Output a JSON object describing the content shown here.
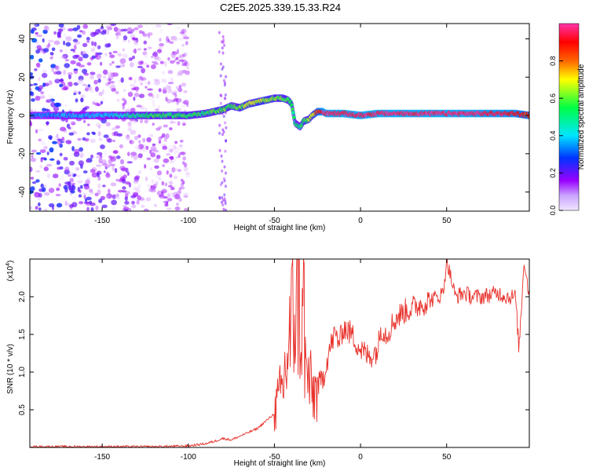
{
  "title": "C2E5.2025.339.15.33.R24",
  "chart_data": [
    {
      "type": "heatmap",
      "xlabel": "Height of straight line (km)",
      "ylabel": "Frequency (Hz)",
      "xlim": [
        -192,
        98
      ],
      "ylim": [
        -50,
        48
      ],
      "xticks": [
        -150,
        -100,
        -50,
        0,
        50
      ],
      "yticks": [
        -40,
        -20,
        0,
        20,
        40
      ],
      "colorbar": {
        "label": "Normalized spectral amplitude",
        "range": [
          0.0,
          1.0
        ],
        "ticks": [
          "0.0",
          "0.2",
          "0.4",
          "0.6",
          "0.8"
        ],
        "colors": [
          "#f2e6ff",
          "#9a00ff",
          "#0033ff",
          "#00e5ff",
          "#00ff44",
          "#ffff00",
          "#ff6600",
          "#ff0000",
          "#ff33aa"
        ]
      },
      "ridge": {
        "x": [
          -190,
          -170,
          -150,
          -140,
          -120,
          -100,
          -90,
          -80,
          -75,
          -70,
          -65,
          -60,
          -55,
          -50,
          -45,
          -42,
          -40,
          -38,
          -35,
          -33,
          -30,
          -28,
          -25,
          -22,
          -20,
          -10,
          0,
          10,
          30,
          60,
          90,
          98
        ],
        "freq": [
          0,
          0,
          0,
          0,
          0,
          0,
          1,
          3,
          5,
          4,
          6,
          7,
          8,
          9,
          9,
          8,
          6,
          -4,
          -6,
          -3,
          -2,
          0,
          2,
          2,
          1,
          1,
          0,
          1,
          1,
          1,
          1,
          0
        ],
        "amplitude": [
          0.3,
          0.35,
          0.35,
          0.4,
          0.5,
          0.5,
          0.5,
          0.55,
          0.5,
          0.55,
          0.6,
          0.6,
          0.6,
          0.55,
          0.55,
          0.5,
          0.5,
          0.45,
          0.45,
          0.5,
          0.55,
          0.6,
          0.8,
          0.9,
          0.95,
          0.95,
          0.95,
          0.95,
          0.95,
          0.95,
          0.9,
          0.8
        ]
      },
      "noise_region_x": [
        -192,
        -100
      ]
    },
    {
      "type": "line",
      "xlabel": "Height of straight line (km)",
      "ylabel": "SNR (10 * v/v)",
      "y_multiplier": "(x10",
      "y_exponent": "4",
      "y_multiplier_close": ")",
      "xlim": [
        -192,
        98
      ],
      "ylim": [
        0,
        2.5
      ],
      "xticks": [
        -150,
        -100,
        -50,
        0,
        50
      ],
      "yticks": [
        0.5,
        1.0,
        1.5,
        2.0
      ],
      "ytick_labels": [
        "0.5",
        "1.0",
        "1.5",
        "2.0"
      ],
      "series": [
        {
          "name": "SNR",
          "color": "#e8312b",
          "x": [
            -192,
            -150,
            -120,
            -100,
            -90,
            -85,
            -80,
            -75,
            -70,
            -65,
            -60,
            -55,
            -50,
            -45,
            -42,
            -40,
            -38,
            -36,
            -34,
            -33,
            -32,
            -30,
            -28,
            -25,
            -22,
            -20,
            -18,
            -15,
            -12,
            -10,
            -5,
            0,
            5,
            10,
            12,
            15,
            20,
            25,
            30,
            35,
            40,
            45,
            48,
            50,
            55,
            60,
            65,
            70,
            80,
            85,
            90,
            92,
            95,
            98
          ],
          "y": [
            0.01,
            0.01,
            0.01,
            0.02,
            0.05,
            0.08,
            0.12,
            0.1,
            0.15,
            0.2,
            0.25,
            0.35,
            0.45,
            0.8,
            1.3,
            1.6,
            1.9,
            2.2,
            1.4,
            2.0,
            1.0,
            0.9,
            0.7,
            0.8,
            0.9,
            1.1,
            1.3,
            1.5,
            1.4,
            1.6,
            1.5,
            1.3,
            1.2,
            1.3,
            1.6,
            1.5,
            1.7,
            1.8,
            1.85,
            1.9,
            1.95,
            2.0,
            2.05,
            2.5,
            2.0,
            2.05,
            2.0,
            2.0,
            2.05,
            2.0,
            2.0,
            1.3,
            2.5,
            2.0
          ]
        }
      ]
    }
  ]
}
